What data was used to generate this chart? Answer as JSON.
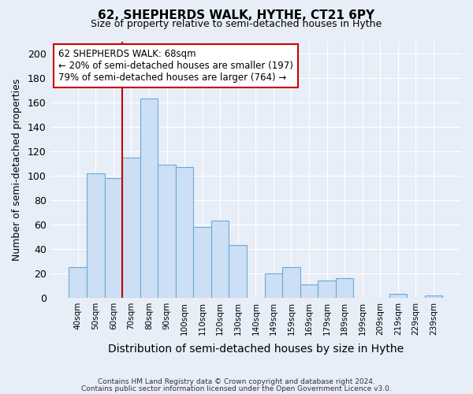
{
  "title": "62, SHEPHERDS WALK, HYTHE, CT21 6PY",
  "subtitle": "Size of property relative to semi-detached houses in Hythe",
  "xlabel": "Distribution of semi-detached houses by size in Hythe",
  "ylabel": "Number of semi-detached properties",
  "bar_labels": [
    "40sqm",
    "50sqm",
    "60sqm",
    "70sqm",
    "80sqm",
    "90sqm",
    "100sqm",
    "110sqm",
    "120sqm",
    "130sqm",
    "140sqm",
    "149sqm",
    "159sqm",
    "169sqm",
    "179sqm",
    "189sqm",
    "199sqm",
    "209sqm",
    "219sqm",
    "229sqm",
    "239sqm"
  ],
  "bar_values": [
    25,
    102,
    98,
    115,
    163,
    109,
    107,
    58,
    63,
    43,
    0,
    20,
    25,
    11,
    14,
    16,
    0,
    0,
    3,
    0,
    2
  ],
  "bar_color": "#ccdff5",
  "bar_edge_color": "#6aaad4",
  "ylim": [
    0,
    210
  ],
  "yticks": [
    0,
    20,
    40,
    60,
    80,
    100,
    120,
    140,
    160,
    180,
    200
  ],
  "vline_color": "#cc0000",
  "annotation_title": "62 SHEPHERDS WALK: 68sqm",
  "annotation_line1": "← 20% of semi-detached houses are smaller (197)",
  "annotation_line2": "79% of semi-detached houses are larger (764) →",
  "annotation_box_color": "#ffffff",
  "annotation_box_edge": "#cc0000",
  "footer_line1": "Contains HM Land Registry data © Crown copyright and database right 2024.",
  "footer_line2": "Contains public sector information licensed under the Open Government Licence v3.0.",
  "background_color": "#e8eef8",
  "plot_bg_color": "#e8eef8",
  "grid_color": "#ffffff"
}
